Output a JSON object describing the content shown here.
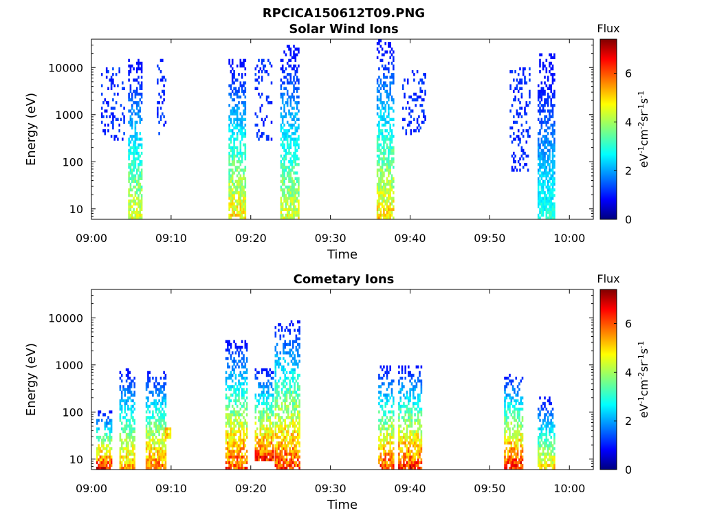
{
  "figure_title": "RPCICA150612T09.PNG",
  "colorbar": {
    "title": "Flux",
    "unit_label": "eV-1cm-2sr-1s-1",
    "ticks": [
      "0",
      "2",
      "4",
      "6"
    ],
    "range": [
      0,
      7.4
    ],
    "colormap": "jet"
  },
  "chart_data": [
    {
      "type": "heatmap",
      "title": "Solar Wind Ions",
      "xlabel": "Time",
      "ylabel": "Energy (eV)",
      "xticks": [
        "09:00",
        "09:10",
        "09:20",
        "09:30",
        "09:40",
        "09:50",
        "10:00"
      ],
      "yticks": [
        "10",
        "100",
        "1000",
        "10000"
      ],
      "xlim": [
        "09:00",
        "10:03"
      ],
      "ylim": [
        6,
        40000
      ],
      "yscale": "log",
      "bursts": [
        {
          "time_min": 1.2,
          "time_max": 4.2,
          "energy_min": 300,
          "energy_max": 9000,
          "flux_max": 1.5,
          "kind": "scatter"
        },
        {
          "time_min": 4.6,
          "time_max": 6.4,
          "energy_min": 6,
          "energy_max": 15000,
          "flux_max": 5.0,
          "kind": "column"
        },
        {
          "time_min": 8.2,
          "time_max": 9.2,
          "energy_min": 400,
          "energy_max": 15000,
          "flux_max": 1.5,
          "kind": "scatter"
        },
        {
          "time_min": 17.2,
          "time_max": 19.2,
          "energy_min": 6,
          "energy_max": 15000,
          "flux_max": 5.5,
          "kind": "column"
        },
        {
          "time_min": 20.5,
          "time_max": 22.5,
          "energy_min": 300,
          "energy_max": 15000,
          "flux_max": 1.5,
          "kind": "scatter"
        },
        {
          "time_min": 23.7,
          "time_max": 26.0,
          "energy_min": 6,
          "energy_max": 30000,
          "flux_max": 5.0,
          "kind": "column"
        },
        {
          "time_min": 35.8,
          "time_max": 38.0,
          "energy_min": 6,
          "energy_max": 38000,
          "flux_max": 5.5,
          "kind": "column"
        },
        {
          "time_min": 39.0,
          "time_max": 42.0,
          "energy_min": 400,
          "energy_max": 8000,
          "flux_max": 1.5,
          "kind": "scatter"
        },
        {
          "time_min": 52.5,
          "time_max": 55.0,
          "energy_min": 70,
          "energy_max": 10000,
          "flux_max": 1.5,
          "kind": "scatter"
        },
        {
          "time_min": 56.0,
          "time_max": 58.2,
          "energy_min": 6,
          "energy_max": 20000,
          "flux_max": 3.5,
          "kind": "column"
        }
      ]
    },
    {
      "type": "heatmap",
      "title": "Cometary Ions",
      "xlabel": "Time",
      "ylabel": "Energy (eV)",
      "xticks": [
        "09:00",
        "09:10",
        "09:20",
        "09:30",
        "09:40",
        "09:50",
        "10:00"
      ],
      "yticks": [
        "10",
        "100",
        "1000",
        "10000"
      ],
      "xlim": [
        "09:00",
        "10:03"
      ],
      "ylim": [
        6,
        40000
      ],
      "yscale": "log",
      "bursts": [
        {
          "time_min": 0.6,
          "time_max": 2.6,
          "energy_min": 6,
          "energy_max": 100,
          "flux_max": 7.2,
          "kind": "column"
        },
        {
          "time_min": 3.5,
          "time_max": 5.5,
          "energy_min": 6,
          "energy_max": 800,
          "flux_max": 6.0,
          "kind": "column"
        },
        {
          "time_min": 6.8,
          "time_max": 9.2,
          "energy_min": 6,
          "energy_max": 700,
          "flux_max": 6.5,
          "kind": "column"
        },
        {
          "time_min": 9.2,
          "time_max": 9.8,
          "energy_min": 30,
          "energy_max": 45,
          "flux_max": 5.5,
          "kind": "band"
        },
        {
          "time_min": 16.8,
          "time_max": 19.5,
          "energy_min": 6,
          "energy_max": 3000,
          "flux_max": 6.8,
          "kind": "column"
        },
        {
          "time_min": 20.5,
          "time_max": 22.8,
          "energy_min": 10,
          "energy_max": 800,
          "flux_max": 7.0,
          "kind": "column"
        },
        {
          "time_min": 23.0,
          "time_max": 26.0,
          "energy_min": 6,
          "energy_max": 8000,
          "flux_max": 6.8,
          "kind": "column"
        },
        {
          "time_min": 36.0,
          "time_max": 38.0,
          "energy_min": 6,
          "energy_max": 900,
          "flux_max": 6.8,
          "kind": "column"
        },
        {
          "time_min": 38.5,
          "time_max": 41.5,
          "energy_min": 6,
          "energy_max": 900,
          "flux_max": 7.0,
          "kind": "column"
        },
        {
          "time_min": 51.8,
          "time_max": 54.2,
          "energy_min": 6,
          "energy_max": 600,
          "flux_max": 7.2,
          "kind": "column"
        },
        {
          "time_min": 56.0,
          "time_max": 58.2,
          "energy_min": 6,
          "energy_max": 200,
          "flux_max": 5.5,
          "kind": "column"
        }
      ]
    }
  ]
}
